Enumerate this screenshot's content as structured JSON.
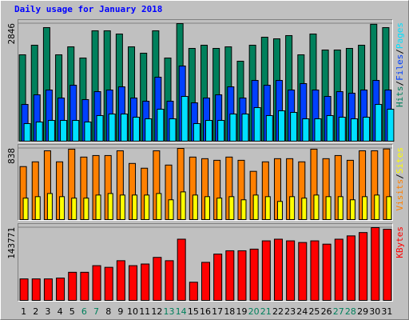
{
  "chart_data": [
    {
      "type": "bar",
      "title": "Daily usage for January 2018",
      "legend_separator": "/",
      "ylim": [
        0,
        2846
      ],
      "yticks": [
        2846
      ],
      "series": [
        {
          "name": "Hits",
          "color": "#00805c",
          "values": [
            2091,
            2323,
            2749,
            2091,
            2284,
            2013,
            2672,
            2672,
            2594,
            2284,
            2130,
            2672,
            2013,
            2846,
            2246,
            2323,
            2246,
            2284,
            1936,
            2323,
            2517,
            2478,
            2556,
            2091,
            2594,
            2207,
            2207,
            2246,
            2323,
            2830,
            2749
          ]
        },
        {
          "name": "Files",
          "color": "#0040ff",
          "values": [
            890,
            1123,
            1239,
            1045,
            1355,
            1007,
            1200,
            1239,
            1316,
            1045,
            968,
            1549,
            968,
            1820,
            929,
            1045,
            1123,
            1316,
            1045,
            1471,
            1355,
            1471,
            1239,
            1394,
            1239,
            1084,
            1200,
            1162,
            1239,
            1471,
            1239
          ]
        },
        {
          "name": "Pages",
          "color": "#00e0ff",
          "values": [
            426,
            465,
            503,
            503,
            503,
            465,
            620,
            658,
            658,
            581,
            542,
            774,
            542,
            1084,
            426,
            503,
            503,
            658,
            658,
            813,
            620,
            736,
            697,
            542,
            542,
            620,
            581,
            542,
            581,
            890,
            774
          ]
        }
      ]
    },
    {
      "type": "bar",
      "legend_separator": "/",
      "ylim": [
        0,
        838
      ],
      "yticks": [
        838
      ],
      "series": [
        {
          "name": "Visits",
          "color": "#ff8000",
          "values": [
            624,
            680,
            810,
            680,
            829,
            736,
            754,
            754,
            810,
            661,
            605,
            810,
            642,
            838,
            736,
            717,
            698,
            736,
            698,
            568,
            680,
            717,
            717,
            680,
            829,
            717,
            754,
            698,
            810,
            810,
            832
          ]
        },
        {
          "name": "Sites",
          "color": "#ffff00",
          "values": [
            253,
            270,
            307,
            270,
            253,
            253,
            289,
            307,
            289,
            289,
            289,
            307,
            233,
            326,
            289,
            270,
            253,
            270,
            233,
            289,
            270,
            214,
            270,
            253,
            289,
            270,
            270,
            233,
            270,
            289,
            270
          ]
        }
      ]
    },
    {
      "type": "bar",
      "ylim": [
        0,
        143771
      ],
      "yticks": [
        143771
      ],
      "categories": [
        "1",
        "2",
        "3",
        "4",
        "5",
        "6",
        "7",
        "8",
        "9",
        "10",
        "11",
        "12",
        "13",
        "14",
        "15",
        "16",
        "17",
        "18",
        "19",
        "20",
        "21",
        "22",
        "23",
        "24",
        "25",
        "26",
        "27",
        "28",
        "29",
        "30",
        "31"
      ],
      "category_colors": [
        "#000000",
        "#000000",
        "#000000",
        "#000000",
        "#000000",
        "#00805c",
        "#00805c",
        "#000000",
        "#000000",
        "#000000",
        "#000000",
        "#000000",
        "#00805c",
        "#00805c",
        "#000000",
        "#000000",
        "#000000",
        "#000000",
        "#000000",
        "#00805c",
        "#00805c",
        "#000000",
        "#000000",
        "#000000",
        "#000000",
        "#000000",
        "#00805c",
        "#00805c",
        "#000000",
        "#000000",
        "#000000"
      ],
      "series": [
        {
          "name": "KBytes",
          "color": "#ff0000",
          "values": [
            42477,
            42477,
            42477,
            44112,
            55550,
            55550,
            68621,
            65353,
            78424,
            68621,
            71889,
            84959,
            78424,
            120906,
            35943,
            75156,
            91495,
            98026,
            98026,
            101294,
            117630,
            120906,
            117630,
            114362,
            117630,
            111095,
            120906,
            127441,
            134012,
            143771,
            140500
          ]
        }
      ]
    }
  ]
}
